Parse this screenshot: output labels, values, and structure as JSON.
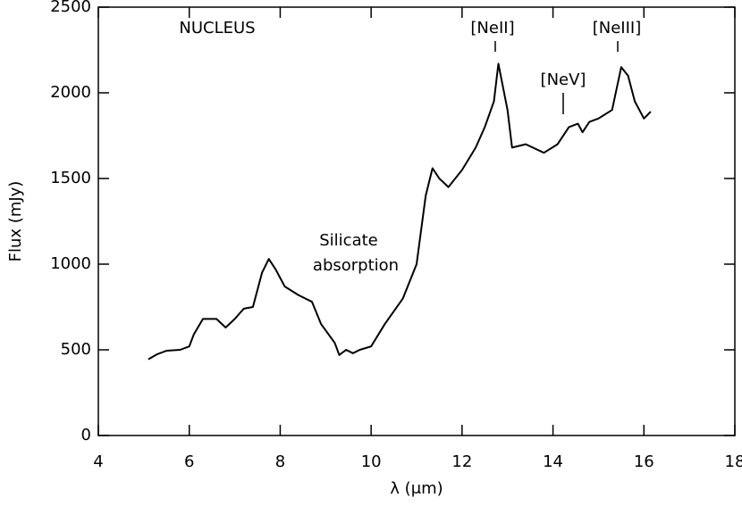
{
  "chart_data": {
    "type": "line",
    "xlabel": "λ (μm)",
    "ylabel": "Flux (mJy)",
    "annotations": [
      "NUCLEUS",
      "Silicate",
      "absorption",
      "[NeII]",
      "[NeV]",
      "[NeIII]"
    ],
    "xlim": [
      4,
      18
    ],
    "xticks": [
      4,
      6,
      8,
      10,
      12,
      14,
      16,
      18
    ],
    "ylim": [
      0,
      2500
    ],
    "yticks": [
      0,
      500,
      1000,
      1500,
      2000,
      2500
    ],
    "series": [
      {
        "color": "#000000",
        "x": [
          5.1,
          5.3,
          5.5,
          5.8,
          6.0,
          6.1,
          6.3,
          6.6,
          6.8,
          7.0,
          7.2,
          7.4,
          7.6,
          7.75,
          7.9,
          8.1,
          8.4,
          8.7,
          8.9,
          9.2,
          9.3,
          9.45,
          9.6,
          9.75,
          10.0,
          10.3,
          10.7,
          11.0,
          11.2,
          11.35,
          11.5,
          11.7,
          12.0,
          12.3,
          12.5,
          12.7,
          12.8,
          13.0,
          13.1,
          13.4,
          13.8,
          14.1,
          14.35,
          14.55,
          14.65,
          14.8,
          15.0,
          15.3,
          15.5,
          15.65,
          15.8,
          16.0,
          16.15
        ],
        "values": [
          445,
          475,
          495,
          500,
          520,
          590,
          680,
          680,
          630,
          680,
          740,
          750,
          950,
          1030,
          970,
          870,
          820,
          780,
          650,
          540,
          470,
          500,
          480,
          500,
          520,
          650,
          800,
          1000,
          1400,
          1560,
          1500,
          1450,
          1550,
          1680,
          1800,
          1950,
          2170,
          1900,
          1680,
          1700,
          1650,
          1700,
          1800,
          1820,
          1770,
          1830,
          1850,
          1900,
          2150,
          2100,
          1950,
          1850,
          1890
        ]
      }
    ]
  }
}
